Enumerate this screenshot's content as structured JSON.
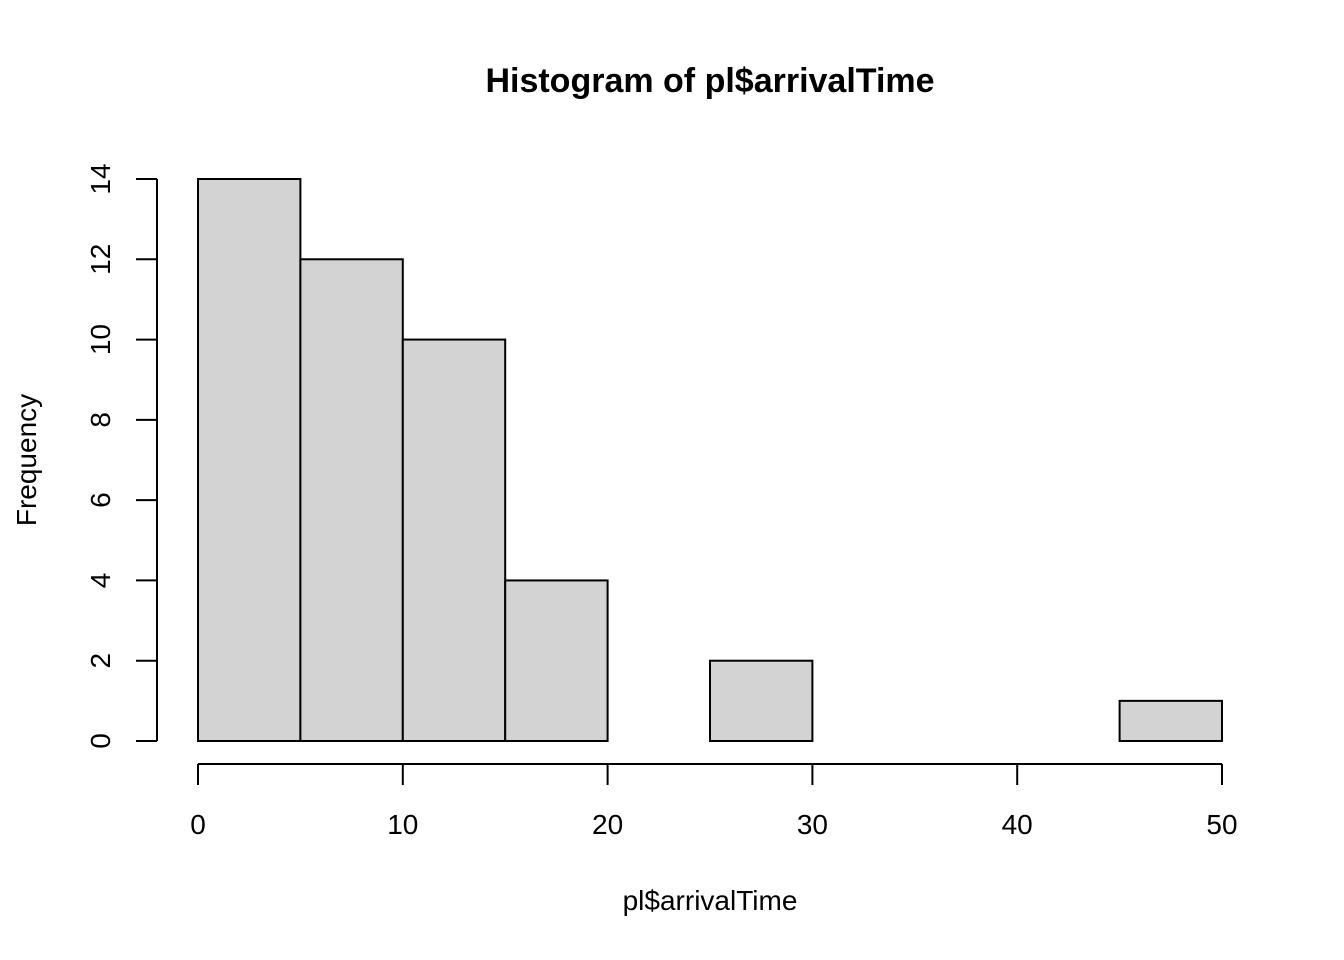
{
  "chart_data": {
    "type": "bar",
    "title": "Histogram of pl$arrivalTime",
    "xlabel": "pl$arrivalTime",
    "ylabel": "Frequency",
    "bins": [
      {
        "from": 0,
        "to": 5,
        "count": 14
      },
      {
        "from": 5,
        "to": 10,
        "count": 12
      },
      {
        "from": 10,
        "to": 15,
        "count": 10
      },
      {
        "from": 15,
        "to": 20,
        "count": 4
      },
      {
        "from": 20,
        "to": 25,
        "count": 0
      },
      {
        "from": 25,
        "to": 30,
        "count": 2
      },
      {
        "from": 30,
        "to": 35,
        "count": 0
      },
      {
        "from": 35,
        "to": 40,
        "count": 0
      },
      {
        "from": 40,
        "to": 45,
        "count": 0
      },
      {
        "from": 45,
        "to": 50,
        "count": 1
      }
    ],
    "x_ticks": [
      0,
      10,
      20,
      30,
      40,
      50
    ],
    "y_ticks": [
      0,
      2,
      4,
      6,
      8,
      10,
      12,
      14
    ],
    "xlim": [
      0,
      50
    ],
    "ylim": [
      0,
      14
    ],
    "bar_color": "#d3d3d3",
    "edge_color": "#000000",
    "grid": false,
    "legend": "none"
  }
}
